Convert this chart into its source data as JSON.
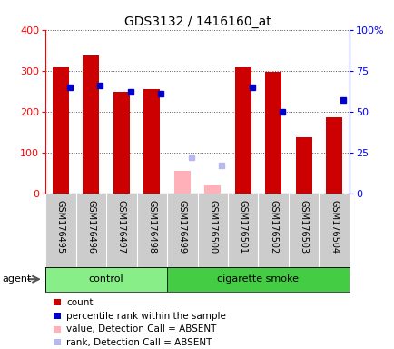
{
  "title": "GDS3132 / 1416160_at",
  "samples": [
    "GSM176495",
    "GSM176496",
    "GSM176497",
    "GSM176498",
    "GSM176499",
    "GSM176500",
    "GSM176501",
    "GSM176502",
    "GSM176503",
    "GSM176504"
  ],
  "count_values": [
    309,
    338,
    248,
    255,
    null,
    null,
    308,
    297,
    138,
    187
  ],
  "count_absent": [
    null,
    null,
    null,
    null,
    55,
    20,
    null,
    null,
    null,
    null
  ],
  "percentile_values_pct": [
    65,
    66,
    62,
    61,
    null,
    null,
    65,
    50,
    null,
    57
  ],
  "percentile_absent_pct": [
    null,
    null,
    null,
    null,
    22,
    17,
    null,
    null,
    null,
    null
  ],
  "groups": [
    {
      "label": "control",
      "start": 0,
      "end": 4,
      "color": "#88ee88"
    },
    {
      "label": "cigarette smoke",
      "start": 4,
      "end": 10,
      "color": "#44cc44"
    }
  ],
  "ylim_left": [
    0,
    400
  ],
  "ylim_right": [
    0,
    100
  ],
  "left_ticks": [
    0,
    100,
    200,
    300,
    400
  ],
  "right_ticks": [
    0,
    25,
    50,
    75,
    100
  ],
  "right_tick_labels": [
    "0",
    "25",
    "50",
    "75",
    "100%"
  ],
  "count_color": "#cc0000",
  "percentile_color": "#0000cc",
  "absent_count_color": "#ffb0b8",
  "absent_rank_color": "#b8b8f0",
  "background_color": "#ffffff",
  "tick_area_color": "#cccccc",
  "dotted_grid_color": "#555555",
  "agent_label": "agent"
}
